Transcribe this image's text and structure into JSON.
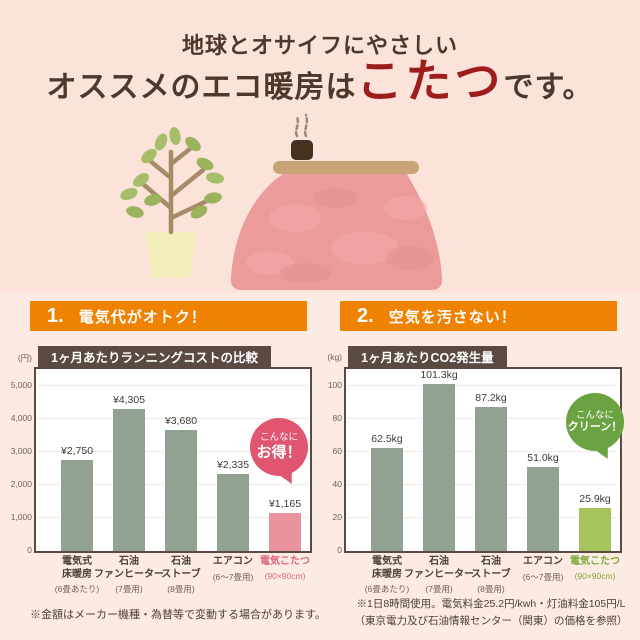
{
  "header": {
    "line1": "地球とオサイフにやさしい",
    "line2_prefix": "オススメのエコ暖房は",
    "line2_highlight": "こたつ",
    "line2_suffix": "です。"
  },
  "illustration": {
    "icons": [
      "potted-plant-icon",
      "kotatsu-icon",
      "teacup-icon",
      "steam-icon"
    ]
  },
  "colors": {
    "background_top": "#fbe3da",
    "background_bottom": "#fcebe2",
    "title_brown": "#4d382d",
    "title_red": "#9c1d1c",
    "section_orange": "#ef8200",
    "panel_brown": "#5a4a41",
    "bar_green": "#91a192",
    "bar_pink": "#e9939f",
    "bar_lightgreen": "#a7c45c",
    "badge_red": "#e15570",
    "badge_green": "#6ca342"
  },
  "sections": [
    {
      "number": "1.",
      "heading": "電気代がオトク！",
      "badge_line1": "こんなに",
      "badge_line2": "お得！"
    },
    {
      "number": "2.",
      "heading": "空気を汚さない！",
      "badge_line1": "こんなに",
      "badge_line2": "クリーン！"
    }
  ],
  "chart_data": [
    {
      "type": "bar",
      "title": "1ヶ月あたりランニングコストの比較",
      "unit_label": "(円)",
      "categories": [
        "電気式\n床暖房",
        "石油\nファンヒーター",
        "石油\nストーブ",
        "エアコン",
        "電気こたつ"
      ],
      "category_subs": [
        "(6畳あたり)",
        "(7畳用)",
        "(8畳用)",
        "(6〜7畳用)",
        "(90×90cm)"
      ],
      "values": [
        2750,
        4305,
        3680,
        2335,
        1165
      ],
      "value_labels": [
        "¥2,750",
        "¥4,305",
        "¥3,680",
        "¥2,335",
        "¥1,165"
      ],
      "y_tick_labels": [
        "0",
        "1,000",
        "2,000",
        "3,000",
        "4,000",
        "5,000"
      ],
      "grid_step": 1000,
      "grid_max": 5000,
      "ylim": [
        0,
        5500
      ],
      "grid": "dotted horizontal",
      "legend": "none",
      "bar_color": "#91a192",
      "highlight_index": 4,
      "highlight_color": "#e9939f",
      "highlight_label_color": "#e0667c"
    },
    {
      "type": "bar",
      "title": "1ヶ月あたりCO2発生量",
      "unit_label": "(kg)",
      "categories": [
        "電気式\n床暖房",
        "石油\nファンヒーター",
        "石油\nストーブ",
        "エアコン",
        "電気こたつ"
      ],
      "category_subs": [
        "(6畳あたり)",
        "(7畳用)",
        "(8畳用)",
        "(6〜7畳用)",
        "(90×90cm)"
      ],
      "values": [
        62.5,
        101.3,
        87.2,
        51.0,
        25.9
      ],
      "value_labels": [
        "62.5kg",
        "101.3kg",
        "87.2kg",
        "51.0kg",
        "25.9kg"
      ],
      "y_tick_labels": [
        "0",
        "20",
        "40",
        "60",
        "80",
        "100"
      ],
      "grid_step": 20,
      "grid_max": 100,
      "ylim": [
        0,
        110
      ],
      "grid": "dotted horizontal",
      "legend": "none",
      "bar_color": "#91a192",
      "highlight_index": 4,
      "highlight_color": "#a7c45c",
      "highlight_label_color": "#7fa73e"
    }
  ],
  "footnotes": {
    "left": "※金額はメーカー機種・為替等で変動する場合があります。",
    "right_line1": "※1日8時間使用。電気料金25.2円/kwh・灯油料金105円/L",
    "right_line2": "（東京電力及び石油情報センター（関東）の価格を参照）"
  }
}
